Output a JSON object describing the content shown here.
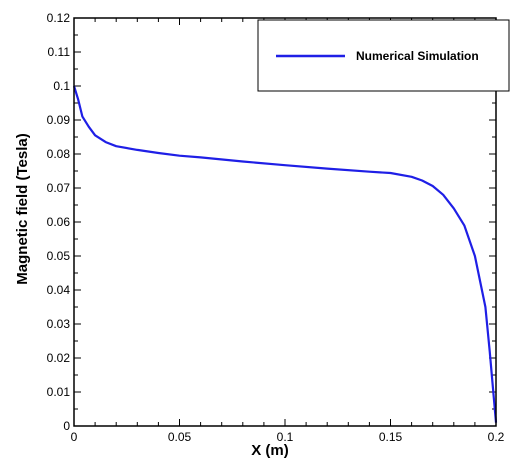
{
  "chart_data": {
    "type": "line",
    "title": "",
    "xlabel": "X (m)",
    "ylabel": "Magnetic field (Tesla)",
    "xlim": [
      0,
      0.2
    ],
    "ylim": [
      0,
      0.12
    ],
    "x_ticks": [
      "0",
      "0.05",
      "0.1",
      "0.15",
      "0.2"
    ],
    "y_ticks": [
      "0",
      "0.01",
      "0.02",
      "0.03",
      "0.04",
      "0.05",
      "0.06",
      "0.07",
      "0.08",
      "0.09",
      "0.1",
      "0.11",
      "0.12"
    ],
    "grid": false,
    "legend_position": "top-right",
    "series": [
      {
        "name": "Numerical Simulation",
        "color": "#1f1fe6",
        "x": [
          0,
          0.002,
          0.004,
          0.007,
          0.01,
          0.015,
          0.02,
          0.03,
          0.04,
          0.05,
          0.06,
          0.08,
          0.1,
          0.12,
          0.14,
          0.15,
          0.16,
          0.165,
          0.17,
          0.175,
          0.18,
          0.185,
          0.19,
          0.195,
          0.197,
          0.199,
          0.2
        ],
        "y": [
          0.1,
          0.096,
          0.091,
          0.088,
          0.0855,
          0.0835,
          0.0823,
          0.0812,
          0.0803,
          0.0795,
          0.079,
          0.0778,
          0.0767,
          0.0757,
          0.0748,
          0.0744,
          0.0733,
          0.0722,
          0.0706,
          0.068,
          0.064,
          0.059,
          0.05,
          0.035,
          0.022,
          0.008,
          0.001
        ]
      }
    ]
  }
}
